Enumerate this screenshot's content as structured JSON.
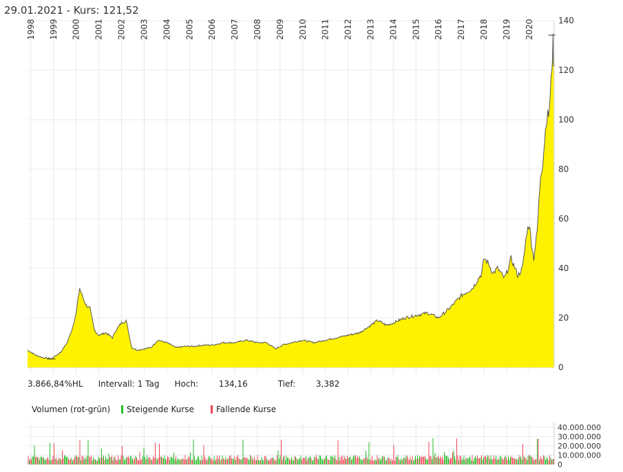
{
  "header": {
    "date": "29.01.2021",
    "separator": " - ",
    "price_label": "Kurs: 121,52"
  },
  "stats": {
    "change": "3.866,84%HL",
    "interval": "Intervall: 1 Tag",
    "high_label": "Hoch:",
    "high_value": "134,16",
    "low_label": "Tief:",
    "low_value": "3,382"
  },
  "volume_legend": {
    "title": "Volumen (rot-grün)",
    "rising": "Steigende Kurse",
    "falling": "Fallende Kurse"
  },
  "colors": {
    "area_fill": "#fff200",
    "price_line": "#555555",
    "rising": "#22bb22",
    "falling": "#ee4455",
    "grid": "#e8e8e8"
  },
  "chart_data": [
    {
      "type": "area",
      "x_axis": {
        "tick_labels": [
          "1998",
          "1999",
          "2000",
          "2001",
          "2002",
          "2003",
          "2004",
          "2005",
          "2006",
          "2007",
          "2008",
          "2009",
          "2010",
          "2011",
          "2012",
          "2013",
          "2014",
          "2015",
          "2016",
          "2017",
          "2018",
          "2019",
          "2020"
        ]
      },
      "y_axis": {
        "side": "right",
        "tick_labels": [
          "0",
          "20",
          "40",
          "60",
          "80",
          "100",
          "120",
          "140"
        ],
        "range": [
          0,
          140
        ]
      },
      "x": [
        1997.85,
        1998.2,
        1998.5,
        1998.9,
        1999.3,
        1999.6,
        1999.8,
        2000.0,
        2000.15,
        2000.3,
        2000.45,
        2000.6,
        2000.8,
        2001.0,
        2001.3,
        2001.6,
        2001.75,
        2002.0,
        2002.2,
        2002.45,
        2002.7,
        2003.0,
        2003.3,
        2003.6,
        2004.0,
        2004.4,
        2004.8,
        2005.2,
        2005.6,
        2006.0,
        2006.5,
        2007.0,
        2007.5,
        2008.0,
        2008.4,
        2008.8,
        2009.1,
        2009.5,
        2010.0,
        2010.5,
        2011.0,
        2011.5,
        2012.0,
        2012.5,
        2013.0,
        2013.3,
        2013.7,
        2014.0,
        2014.5,
        2015.0,
        2015.5,
        2016.0,
        2016.5,
        2017.0,
        2017.5,
        2017.9,
        2018.0,
        2018.2,
        2018.4,
        2018.6,
        2018.9,
        2019.0,
        2019.2,
        2019.5,
        2019.7,
        2019.9,
        2020.0,
        2020.1,
        2020.2,
        2020.35,
        2020.5,
        2020.6,
        2020.75,
        2020.85,
        2020.92,
        2021.0,
        2021.05,
        2021.08
      ],
      "y": [
        7,
        5,
        4,
        3.5,
        6,
        10,
        15,
        22,
        32,
        28,
        25,
        24,
        15,
        13,
        14,
        12,
        15,
        18,
        19,
        8,
        7,
        7.5,
        8,
        11,
        10,
        8,
        8.5,
        8.5,
        9,
        9,
        10,
        10,
        11,
        10,
        10,
        7.5,
        9,
        10,
        11,
        10,
        11,
        12,
        13,
        14,
        17,
        19,
        17,
        18,
        20,
        21,
        22,
        20,
        24,
        29,
        32,
        38,
        44,
        42,
        38,
        40,
        36,
        38,
        44,
        37,
        40,
        55,
        58,
        50,
        44,
        55,
        78,
        83,
        100,
        102,
        108,
        122,
        131,
        121.52
      ],
      "volume": {
        "ylim": [
          0,
          45000000
        ],
        "tick_labels": [
          "0",
          "10.000.000",
          "20.000.000",
          "30.000.000",
          "40.000.000"
        ]
      }
    }
  ]
}
